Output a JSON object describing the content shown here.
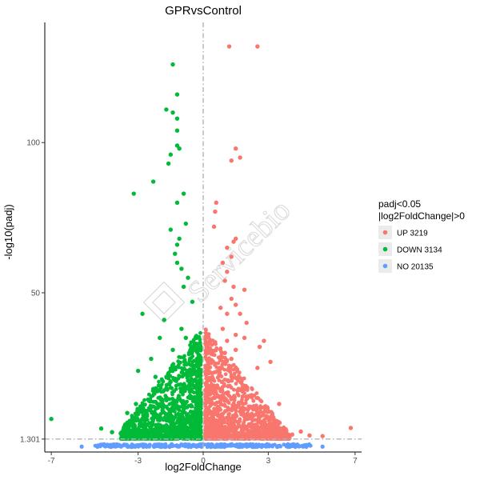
{
  "chart_data": {
    "type": "scatter",
    "title": "GPRvsControl",
    "xlabel": "log2FoldChange",
    "ylabel": "-log10(padj)",
    "xlim": [
      -7.3,
      7.3
    ],
    "ylim": [
      -3,
      140
    ],
    "x_ticks": [
      -7,
      -3,
      0,
      3,
      7
    ],
    "y_ticks": [
      1.301,
      50,
      100
    ],
    "y_tick_labels": [
      "1.301",
      "50",
      "100"
    ],
    "threshold_lines": {
      "x": 0,
      "y": 1.301
    },
    "grid": false,
    "legend": {
      "title_lines": [
        "padj<0.05",
        "|log2FoldChange|>0"
      ],
      "placement": "right",
      "entries": [
        {
          "label": "UP 3219",
          "color": "#F8766D"
        },
        {
          "label": "DOWN 3134",
          "color": "#00BA38"
        },
        {
          "label": "NO 20135",
          "color": "#619CFF"
        }
      ]
    },
    "series": [
      {
        "name": "UP 3219",
        "color": "#F8766D",
        "points": [
          [
            1.2,
            132
          ],
          [
            2.5,
            132
          ],
          [
            1.5,
            98
          ],
          [
            1.7,
            95
          ],
          [
            1.3,
            94
          ],
          [
            0.6,
            80
          ],
          [
            0.55,
            77
          ],
          [
            0.5,
            72
          ],
          [
            1.5,
            68
          ],
          [
            1.4,
            67
          ],
          [
            1.1,
            65
          ],
          [
            1.3,
            62
          ],
          [
            0.9,
            60
          ],
          [
            1.1,
            57
          ],
          [
            1.0,
            54
          ],
          [
            1.4,
            52
          ],
          [
            1.9,
            51
          ],
          [
            1.3,
            48
          ],
          [
            1.5,
            46
          ],
          [
            0.8,
            45
          ],
          [
            1.1,
            43
          ],
          [
            1.7,
            43
          ],
          [
            2.0,
            40
          ],
          [
            0.9,
            38
          ],
          [
            1.5,
            36
          ],
          [
            1.9,
            35
          ],
          [
            2.8,
            34
          ],
          [
            1.1,
            34
          ],
          [
            2.6,
            32
          ],
          [
            1.5,
            31
          ],
          [
            3.1,
            27
          ],
          [
            2.5,
            25
          ],
          [
            1.0,
            30
          ],
          [
            1.3,
            28
          ],
          [
            3.5,
            13
          ],
          [
            6.8,
            5
          ],
          [
            4.9,
            2.5
          ],
          [
            5.5,
            2.3
          ],
          [
            4.5,
            3.8
          ],
          [
            4.1,
            2.8
          ],
          [
            3.8,
            4.6
          ],
          [
            3.4,
            5.6
          ]
        ],
        "dense_cloud": {
          "x_range": [
            0.1,
            4.0
          ],
          "y_max": 38
        }
      },
      {
        "name": "DOWN 3134",
        "color": "#00BA38",
        "points": [
          [
            -1.4,
            126
          ],
          [
            -1.2,
            116
          ],
          [
            -1.7,
            111
          ],
          [
            -1.4,
            110
          ],
          [
            -1.2,
            108
          ],
          [
            -1.2,
            104
          ],
          [
            -1.2,
            99
          ],
          [
            -1.1,
            98
          ],
          [
            -1.5,
            96
          ],
          [
            -1.6,
            93
          ],
          [
            -2.3,
            87
          ],
          [
            -3.2,
            83
          ],
          [
            -0.9,
            83
          ],
          [
            -1.2,
            80
          ],
          [
            -0.8,
            73
          ],
          [
            -1.5,
            71
          ],
          [
            -1.1,
            68
          ],
          [
            -1.2,
            66
          ],
          [
            -1.3,
            63
          ],
          [
            -1.2,
            60
          ],
          [
            -1.0,
            58
          ],
          [
            -0.7,
            55
          ],
          [
            -0.9,
            52
          ],
          [
            -0.5,
            47
          ],
          [
            -2.8,
            43
          ],
          [
            -1.8,
            41
          ],
          [
            -1.0,
            38
          ],
          [
            -0.8,
            35
          ],
          [
            -2.0,
            35
          ],
          [
            -2.4,
            28
          ],
          [
            -1.4,
            31
          ],
          [
            -3.0,
            24
          ],
          [
            -2.2,
            22
          ],
          [
            -1.5,
            24
          ],
          [
            -2.3,
            18
          ],
          [
            -3.1,
            13
          ],
          [
            -3.5,
            10
          ],
          [
            -7.0,
            8
          ],
          [
            -4.7,
            4.8
          ],
          [
            -4.2,
            3.6
          ],
          [
            -3.8,
            3.2
          ],
          [
            -3.2,
            3.1
          ],
          [
            -2.8,
            3.0
          ],
          [
            -2.6,
            6.0
          ]
        ],
        "dense_cloud": {
          "x_range": [
            -3.8,
            -0.1
          ],
          "y_max": 38
        }
      },
      {
        "name": "NO 20135",
        "color": "#619CFF",
        "points": [
          [
            -5.6,
            -1.2
          ],
          [
            5.5,
            -1.2
          ]
        ],
        "dense_band": {
          "x_range": [
            -5.0,
            5.0
          ],
          "y_range": [
            -1.4,
            1.2
          ]
        }
      }
    ]
  }
}
